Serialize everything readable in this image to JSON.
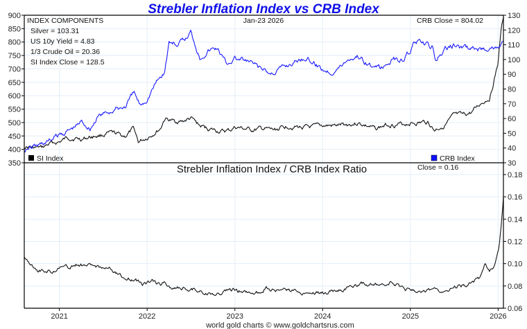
{
  "chart_data": [
    {
      "type": "line",
      "title": "Strebler Inflation Index vs CRB Index",
      "date_label": "Jan-23  2026",
      "x_ticks": [
        "2021",
        "2022",
        "2023",
        "2024",
        "2025",
        "2026"
      ],
      "xlim": [
        2020.6,
        2026.06
      ],
      "left_axis": {
        "ticks": [
          "900",
          "850",
          "800",
          "750",
          "700",
          "650",
          "600",
          "550",
          "500",
          "450",
          "400",
          "350"
        ],
        "ylim": [
          350,
          900
        ]
      },
      "right_axis": {
        "ticks": [
          "130",
          "120",
          "110",
          "100",
          "90",
          "80",
          "70",
          "60",
          "50",
          "40",
          "30"
        ],
        "ylim": [
          30,
          130
        ]
      },
      "annotations": {
        "components_header": "INDEX COMPONENTS",
        "silver": "Silver = 103.31",
        "yield": "US 10y Yield = 4.83",
        "crude": "1/3 Crude Oil = 20.36",
        "si_close": "SI Index Close = 128.5",
        "crb_close": "CRB Close = 804.02"
      },
      "series": [
        {
          "name": "CRB Index",
          "axis": "left",
          "color": "#1a1aff",
          "points": [
            [
              2020.6,
              400
            ],
            [
              2020.75,
              415
            ],
            [
              2020.9,
              435
            ],
            [
              2021.0,
              455
            ],
            [
              2021.1,
              470
            ],
            [
              2021.2,
              490
            ],
            [
              2021.25,
              505
            ],
            [
              2021.35,
              480
            ],
            [
              2021.45,
              525
            ],
            [
              2021.6,
              545
            ],
            [
              2021.75,
              560
            ],
            [
              2021.85,
              610
            ],
            [
              2021.92,
              565
            ],
            [
              2022.0,
              590
            ],
            [
              2022.1,
              650
            ],
            [
              2022.2,
              690
            ],
            [
              2022.25,
              800
            ],
            [
              2022.35,
              790
            ],
            [
              2022.45,
              815
            ],
            [
              2022.5,
              840
            ],
            [
              2022.6,
              745
            ],
            [
              2022.7,
              770
            ],
            [
              2022.8,
              780
            ],
            [
              2022.9,
              720
            ],
            [
              2023.0,
              740
            ],
            [
              2023.1,
              730
            ],
            [
              2023.2,
              720
            ],
            [
              2023.3,
              700
            ],
            [
              2023.4,
              680
            ],
            [
              2023.5,
              700
            ],
            [
              2023.6,
              715
            ],
            [
              2023.7,
              730
            ],
            [
              2023.8,
              745
            ],
            [
              2023.9,
              720
            ],
            [
              2024.0,
              700
            ],
            [
              2024.1,
              690
            ],
            [
              2024.2,
              710
            ],
            [
              2024.3,
              740
            ],
            [
              2024.4,
              750
            ],
            [
              2024.5,
              725
            ],
            [
              2024.6,
              700
            ],
            [
              2024.7,
              705
            ],
            [
              2024.8,
              740
            ],
            [
              2024.9,
              730
            ],
            [
              2025.0,
              770
            ],
            [
              2025.05,
              800
            ],
            [
              2025.15,
              790
            ],
            [
              2025.25,
              780
            ],
            [
              2025.28,
              730
            ],
            [
              2025.4,
              770
            ],
            [
              2025.5,
              790
            ],
            [
              2025.6,
              775
            ],
            [
              2025.7,
              780
            ],
            [
              2025.8,
              770
            ],
            [
              2025.9,
              785
            ],
            [
              2026.0,
              775
            ],
            [
              2026.06,
              804
            ]
          ]
        },
        {
          "name": "SI Index",
          "axis": "right",
          "color": "#111111",
          "points": [
            [
              2020.6,
              41
            ],
            [
              2020.7,
              40
            ],
            [
              2020.8,
              40
            ],
            [
              2020.9,
              43
            ],
            [
              2021.0,
              44
            ],
            [
              2021.1,
              47
            ],
            [
              2021.25,
              46
            ],
            [
              2021.4,
              48
            ],
            [
              2021.6,
              50
            ],
            [
              2021.75,
              48
            ],
            [
              2021.85,
              53
            ],
            [
              2021.9,
              44
            ],
            [
              2022.0,
              47
            ],
            [
              2022.15,
              53
            ],
            [
              2022.2,
              60
            ],
            [
              2022.3,
              58
            ],
            [
              2022.4,
              58
            ],
            [
              2022.5,
              60
            ],
            [
              2022.6,
              55
            ],
            [
              2022.7,
              53
            ],
            [
              2022.85,
              51
            ],
            [
              2022.95,
              52
            ],
            [
              2023.0,
              54
            ],
            [
              2023.1,
              53
            ],
            [
              2023.2,
              52
            ],
            [
              2023.3,
              53
            ],
            [
              2023.45,
              52
            ],
            [
              2023.6,
              55
            ],
            [
              2023.75,
              54
            ],
            [
              2023.9,
              54
            ],
            [
              2024.0,
              55
            ],
            [
              2024.15,
              55
            ],
            [
              2024.3,
              56
            ],
            [
              2024.4,
              57
            ],
            [
              2024.5,
              55
            ],
            [
              2024.6,
              53
            ],
            [
              2024.75,
              56
            ],
            [
              2024.9,
              56
            ],
            [
              2025.0,
              57
            ],
            [
              2025.1,
              57
            ],
            [
              2025.2,
              58
            ],
            [
              2025.27,
              52
            ],
            [
              2025.4,
              56
            ],
            [
              2025.5,
              62
            ],
            [
              2025.6,
              62
            ],
            [
              2025.7,
              64
            ],
            [
              2025.8,
              70
            ],
            [
              2025.9,
              74
            ],
            [
              2025.95,
              85
            ],
            [
              2026.0,
              98
            ],
            [
              2026.03,
              118
            ],
            [
              2026.06,
              128.5
            ]
          ]
        }
      ],
      "legend": [
        "SI Index",
        "CRB Index"
      ]
    },
    {
      "type": "line",
      "title": "Strebler Inflation Index / CRB Index Ratio",
      "close_label": "Close = 0.16",
      "ylim": [
        0.06,
        0.19
      ],
      "y_ticks": [
        "0.18",
        "0.16",
        "0.14",
        "0.12",
        "0.10",
        "0.08",
        "0.06"
      ],
      "series": [
        {
          "name": "Ratio",
          "color": "#111111",
          "points": [
            [
              2020.6,
              0.105
            ],
            [
              2020.65,
              0.103
            ],
            [
              2020.75,
              0.094
            ],
            [
              2020.9,
              0.093
            ],
            [
              2021.0,
              0.097
            ],
            [
              2021.1,
              0.096
            ],
            [
              2021.2,
              0.099
            ],
            [
              2021.35,
              0.098
            ],
            [
              2021.5,
              0.098
            ],
            [
              2021.6,
              0.095
            ],
            [
              2021.75,
              0.086
            ],
            [
              2021.85,
              0.087
            ],
            [
              2021.95,
              0.082
            ],
            [
              2022.05,
              0.084
            ],
            [
              2022.15,
              0.082
            ],
            [
              2022.2,
              0.083
            ],
            [
              2022.3,
              0.078
            ],
            [
              2022.5,
              0.078
            ],
            [
              2022.65,
              0.074
            ],
            [
              2022.8,
              0.072
            ],
            [
              2022.9,
              0.075
            ],
            [
              2023.0,
              0.076
            ],
            [
              2023.15,
              0.075
            ],
            [
              2023.25,
              0.074
            ],
            [
              2023.35,
              0.078
            ],
            [
              2023.5,
              0.076
            ],
            [
              2023.7,
              0.075
            ],
            [
              2023.9,
              0.075
            ],
            [
              2024.0,
              0.074
            ],
            [
              2024.2,
              0.077
            ],
            [
              2024.35,
              0.08
            ],
            [
              2024.5,
              0.082
            ],
            [
              2024.7,
              0.08
            ],
            [
              2024.8,
              0.083
            ],
            [
              2024.9,
              0.078
            ],
            [
              2025.0,
              0.076
            ],
            [
              2025.2,
              0.075
            ],
            [
              2025.35,
              0.076
            ],
            [
              2025.5,
              0.079
            ],
            [
              2025.6,
              0.081
            ],
            [
              2025.7,
              0.082
            ],
            [
              2025.8,
              0.087
            ],
            [
              2025.85,
              0.099
            ],
            [
              2025.9,
              0.093
            ],
            [
              2025.95,
              0.096
            ],
            [
              2026.0,
              0.11
            ],
            [
              2026.03,
              0.13
            ],
            [
              2026.05,
              0.148
            ],
            [
              2026.06,
              0.16
            ]
          ]
        }
      ]
    }
  ],
  "footer": {
    "credit": "world gold charts © www.goldchartsrus.com"
  }
}
